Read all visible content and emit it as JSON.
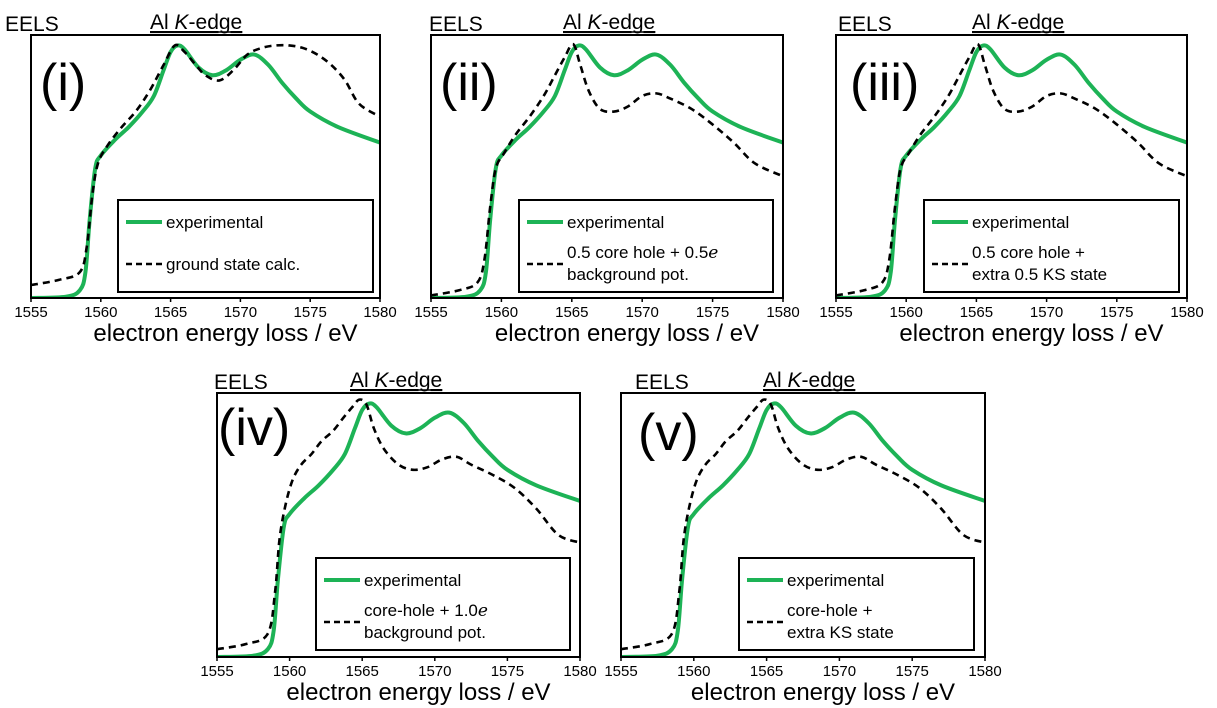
{
  "chart_data": [
    {
      "type": "line",
      "panel_label": "(i)",
      "corner_label": "EELS",
      "edge_prefix": "Al ",
      "edge_italic": "K",
      "edge_suffix": "-edge",
      "xlabel": "electron energy loss / eV",
      "xlim": [
        1555,
        1580
      ],
      "ylim": [
        0,
        1
      ],
      "xticks": [
        "1555",
        "1560",
        "1565",
        "1570",
        "1575",
        "1580"
      ],
      "legend": [
        "experimental",
        "ground state calc."
      ],
      "series": [
        {
          "name": "experimental",
          "color": "#1db356",
          "x": [
            1555,
            1557.5,
            1558.5,
            1558.9,
            1559.2,
            1559.6,
            1560,
            1561,
            1562,
            1563,
            1563.8,
            1564.5,
            1565,
            1565.5,
            1566,
            1567,
            1568,
            1569,
            1570,
            1571,
            1572,
            1573,
            1574,
            1575,
            1577,
            1580
          ],
          "y": [
            0.0,
            0.005,
            0.03,
            0.1,
            0.3,
            0.5,
            0.55,
            0.61,
            0.66,
            0.72,
            0.78,
            0.88,
            0.95,
            0.975,
            0.96,
            0.89,
            0.86,
            0.88,
            0.92,
            0.94,
            0.9,
            0.83,
            0.77,
            0.72,
            0.66,
            0.6
          ]
        },
        {
          "name": "ground state calc.",
          "color": "#000000",
          "x": [
            1555,
            1557,
            1558.5,
            1559,
            1559.4,
            1559.8,
            1560.5,
            1561.5,
            1562.5,
            1563.5,
            1564.5,
            1565.3,
            1566,
            1566.8,
            1567.5,
            1568.5,
            1569.5,
            1570.5,
            1571.5,
            1572.5,
            1573.5,
            1574.5,
            1575.5,
            1576.5,
            1577.5,
            1578.5,
            1580
          ],
          "y": [
            0.05,
            0.07,
            0.1,
            0.2,
            0.4,
            0.52,
            0.59,
            0.66,
            0.72,
            0.8,
            0.9,
            0.975,
            0.95,
            0.9,
            0.86,
            0.84,
            0.88,
            0.94,
            0.965,
            0.975,
            0.975,
            0.965,
            0.94,
            0.9,
            0.84,
            0.75,
            0.7
          ]
        }
      ]
    },
    {
      "type": "line",
      "panel_label": "(ii)",
      "corner_label": "EELS",
      "edge_prefix": "Al ",
      "edge_italic": "K",
      "edge_suffix": "-edge",
      "xlabel": "electron energy loss / eV",
      "xlim": [
        1555,
        1580
      ],
      "ylim": [
        0,
        1
      ],
      "xticks": [
        "1555",
        "1560",
        "1565",
        "1570",
        "1575",
        "1580"
      ],
      "legend": [
        "experimental",
        "0.5 core hole + 0.5",
        "e",
        "background pot."
      ],
      "series": [
        {
          "name": "experimental",
          "color": "#1db356",
          "x": [
            1555,
            1557.5,
            1558.5,
            1558.9,
            1559.2,
            1559.6,
            1560,
            1561,
            1562,
            1563,
            1563.8,
            1564.5,
            1565,
            1565.5,
            1566,
            1567,
            1568,
            1569,
            1570,
            1571,
            1572,
            1573,
            1574,
            1575,
            1577,
            1580
          ],
          "y": [
            0.0,
            0.005,
            0.03,
            0.1,
            0.3,
            0.5,
            0.55,
            0.61,
            0.66,
            0.72,
            0.78,
            0.88,
            0.95,
            0.975,
            0.96,
            0.89,
            0.86,
            0.88,
            0.92,
            0.94,
            0.9,
            0.83,
            0.77,
            0.72,
            0.66,
            0.6
          ]
        },
        {
          "name": "0.5 core hole + 0.5 e background pot.",
          "color": "#000000",
          "x": [
            1555,
            1557,
            1558.3,
            1558.8,
            1559.2,
            1559.6,
            1560.2,
            1561,
            1562,
            1563,
            1563.8,
            1564.5,
            1565.1,
            1565.6,
            1566.2,
            1567,
            1568,
            1569,
            1570,
            1571,
            1572,
            1573.5,
            1575,
            1576.5,
            1578,
            1580
          ],
          "y": [
            0.01,
            0.03,
            0.06,
            0.15,
            0.35,
            0.5,
            0.56,
            0.63,
            0.7,
            0.78,
            0.86,
            0.93,
            0.98,
            0.9,
            0.8,
            0.73,
            0.72,
            0.74,
            0.78,
            0.79,
            0.77,
            0.73,
            0.67,
            0.6,
            0.52,
            0.47
          ]
        }
      ]
    },
    {
      "type": "line",
      "panel_label": "(iii)",
      "corner_label": "EELS",
      "edge_prefix": "Al ",
      "edge_italic": "K",
      "edge_suffix": "-edge",
      "xlabel": "electron energy loss / eV",
      "xlim": [
        1555,
        1580
      ],
      "ylim": [
        0,
        1
      ],
      "xticks": [
        "1555",
        "1560",
        "1565",
        "1570",
        "1575",
        "1580"
      ],
      "legend": [
        "experimental",
        "0.5 core hole +",
        "extra 0.5 KS state"
      ],
      "series": [
        {
          "name": "experimental",
          "color": "#1db356",
          "x": [
            1555,
            1557.5,
            1558.5,
            1558.9,
            1559.2,
            1559.6,
            1560,
            1561,
            1562,
            1563,
            1563.8,
            1564.5,
            1565,
            1565.5,
            1566,
            1567,
            1568,
            1569,
            1570,
            1571,
            1572,
            1573,
            1574,
            1575,
            1577,
            1580
          ],
          "y": [
            0.0,
            0.005,
            0.03,
            0.1,
            0.3,
            0.5,
            0.55,
            0.61,
            0.66,
            0.72,
            0.78,
            0.88,
            0.95,
            0.975,
            0.96,
            0.89,
            0.86,
            0.88,
            0.92,
            0.94,
            0.9,
            0.83,
            0.77,
            0.72,
            0.66,
            0.6
          ]
        },
        {
          "name": "0.5 core hole + extra 0.5 KS state",
          "color": "#000000",
          "x": [
            1555,
            1557,
            1558.3,
            1558.8,
            1559.2,
            1559.6,
            1560.2,
            1561,
            1562,
            1563,
            1563.8,
            1564.5,
            1565.1,
            1565.6,
            1566.2,
            1567,
            1568,
            1569,
            1570,
            1571,
            1572,
            1573.5,
            1575,
            1576.5,
            1578,
            1580
          ],
          "y": [
            0.01,
            0.03,
            0.06,
            0.15,
            0.35,
            0.5,
            0.56,
            0.63,
            0.7,
            0.78,
            0.86,
            0.93,
            0.98,
            0.9,
            0.8,
            0.73,
            0.72,
            0.74,
            0.78,
            0.79,
            0.77,
            0.73,
            0.67,
            0.6,
            0.52,
            0.47
          ]
        }
      ]
    },
    {
      "type": "line",
      "panel_label": "(iv)",
      "corner_label": "EELS",
      "edge_prefix": "Al ",
      "edge_italic": "K",
      "edge_suffix": "-edge",
      "xlabel": "electron energy loss / eV",
      "xlim": [
        1555,
        1580
      ],
      "ylim": [
        0,
        1
      ],
      "xticks": [
        "1555",
        "1560",
        "1565",
        "1570",
        "1575",
        "1580"
      ],
      "legend": [
        "experimental",
        "core-hole + 1.0",
        "e",
        "background pot."
      ],
      "series": [
        {
          "name": "experimental",
          "color": "#1db356",
          "x": [
            1555,
            1557.5,
            1558.5,
            1558.9,
            1559.2,
            1559.6,
            1560,
            1561,
            1562,
            1563,
            1563.8,
            1564.5,
            1565,
            1565.5,
            1566,
            1567,
            1568,
            1569,
            1570,
            1571,
            1572,
            1573,
            1574,
            1575,
            1577,
            1580
          ],
          "y": [
            0.0,
            0.005,
            0.03,
            0.1,
            0.3,
            0.5,
            0.55,
            0.61,
            0.66,
            0.72,
            0.78,
            0.88,
            0.95,
            0.975,
            0.96,
            0.89,
            0.86,
            0.88,
            0.92,
            0.94,
            0.9,
            0.83,
            0.77,
            0.72,
            0.66,
            0.6
          ]
        },
        {
          "name": "core-hole + 1.0 e background pot.",
          "color": "#000000",
          "x": [
            1555,
            1557,
            1558.5,
            1559,
            1559.3,
            1559.7,
            1560.2,
            1560.8,
            1561.5,
            1562.2,
            1563,
            1563.7,
            1564.3,
            1564.8,
            1565.3,
            1565.8,
            1566.5,
            1567.5,
            1568.5,
            1569.5,
            1570.5,
            1571.5,
            1572.5,
            1574,
            1575.5,
            1577,
            1578.5,
            1580
          ],
          "y": [
            0.03,
            0.05,
            0.09,
            0.25,
            0.45,
            0.58,
            0.68,
            0.74,
            0.78,
            0.83,
            0.87,
            0.92,
            0.96,
            0.99,
            0.97,
            0.88,
            0.8,
            0.74,
            0.72,
            0.73,
            0.76,
            0.77,
            0.74,
            0.7,
            0.65,
            0.57,
            0.47,
            0.44
          ]
        }
      ]
    },
    {
      "type": "line",
      "panel_label": "(v)",
      "corner_label": "EELS",
      "edge_prefix": "Al ",
      "edge_italic": "K",
      "edge_suffix": "-edge",
      "xlabel": "electron energy loss / eV",
      "xlim": [
        1555,
        1580
      ],
      "ylim": [
        0,
        1
      ],
      "xticks": [
        "1555",
        "1560",
        "1565",
        "1570",
        "1575",
        "1580"
      ],
      "legend": [
        "experimental",
        "core-hole +",
        "extra KS state"
      ],
      "series": [
        {
          "name": "experimental",
          "color": "#1db356",
          "x": [
            1555,
            1557.5,
            1558.5,
            1558.9,
            1559.2,
            1559.6,
            1560,
            1561,
            1562,
            1563,
            1563.8,
            1564.5,
            1565,
            1565.5,
            1566,
            1567,
            1568,
            1569,
            1570,
            1571,
            1572,
            1573,
            1574,
            1575,
            1577,
            1580
          ],
          "y": [
            0.0,
            0.005,
            0.03,
            0.1,
            0.3,
            0.5,
            0.55,
            0.61,
            0.66,
            0.72,
            0.78,
            0.88,
            0.95,
            0.975,
            0.96,
            0.89,
            0.86,
            0.88,
            0.92,
            0.94,
            0.9,
            0.83,
            0.77,
            0.72,
            0.66,
            0.6
          ]
        },
        {
          "name": "core-hole + extra KS state",
          "color": "#000000",
          "x": [
            1555,
            1557,
            1558.5,
            1559,
            1559.3,
            1559.7,
            1560.2,
            1560.8,
            1561.5,
            1562.2,
            1563,
            1563.7,
            1564.3,
            1564.8,
            1565.3,
            1565.8,
            1566.5,
            1567.5,
            1568.5,
            1569.5,
            1570.5,
            1571.5,
            1572.5,
            1574,
            1575.5,
            1577,
            1578.5,
            1580
          ],
          "y": [
            0.03,
            0.05,
            0.09,
            0.25,
            0.45,
            0.58,
            0.68,
            0.74,
            0.78,
            0.83,
            0.87,
            0.92,
            0.96,
            0.99,
            0.97,
            0.88,
            0.8,
            0.74,
            0.72,
            0.73,
            0.76,
            0.77,
            0.74,
            0.7,
            0.65,
            0.57,
            0.47,
            0.44
          ]
        }
      ]
    }
  ]
}
